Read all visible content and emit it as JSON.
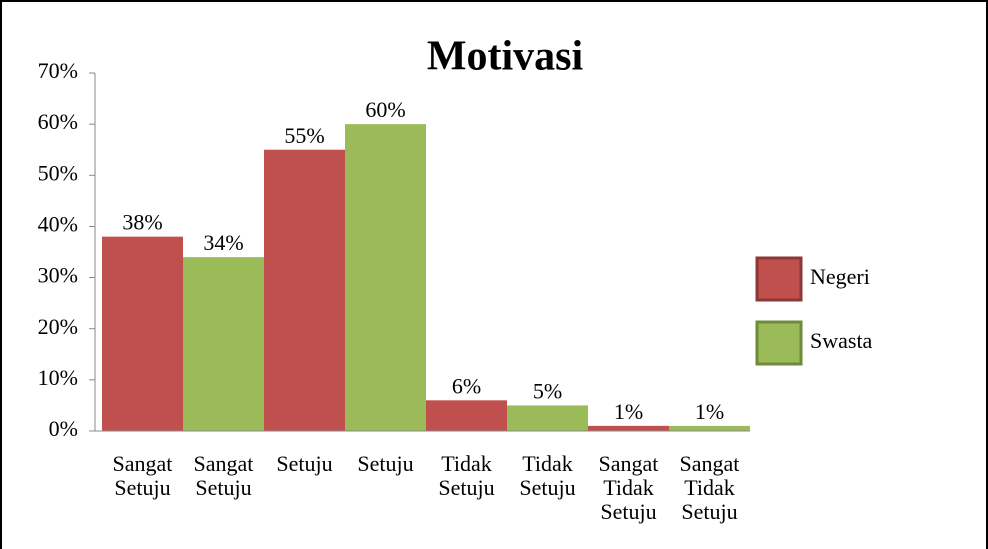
{
  "chart_data": {
    "type": "bar",
    "title": "Motivasi",
    "categories": [
      "Sangat Setuju",
      "Sangat Setuju",
      "Setuju",
      "Setuju",
      "Tidak Setuju",
      "Tidak Setuju",
      "Sangat Tidak Setuju",
      "Sangat Tidak Setuju"
    ],
    "series": [
      {
        "name": "Negeri",
        "color": "#c0504d",
        "values": [
          38,
          null,
          55,
          null,
          6,
          null,
          1,
          null
        ],
        "value_labels": [
          "38%",
          null,
          "55%",
          null,
          "6%",
          null,
          "1%",
          null
        ]
      },
      {
        "name": "Swasta",
        "color": "#9bbb59",
        "values": [
          null,
          34,
          null,
          60,
          null,
          5,
          null,
          1
        ],
        "value_labels": [
          null,
          "34%",
          null,
          "60%",
          null,
          "5%",
          null,
          "1%"
        ]
      }
    ],
    "ylim": [
      0,
      70
    ],
    "yticks": [
      {
        "value": 0,
        "label": "0%"
      },
      {
        "value": 10,
        "label": "10%"
      },
      {
        "value": 20,
        "label": "20%"
      },
      {
        "value": 30,
        "label": "30%"
      },
      {
        "value": 40,
        "label": "40%"
      },
      {
        "value": 50,
        "label": "50%"
      },
      {
        "value": 60,
        "label": "60%"
      },
      {
        "value": 70,
        "label": "70%"
      }
    ],
    "legend": "right"
  }
}
